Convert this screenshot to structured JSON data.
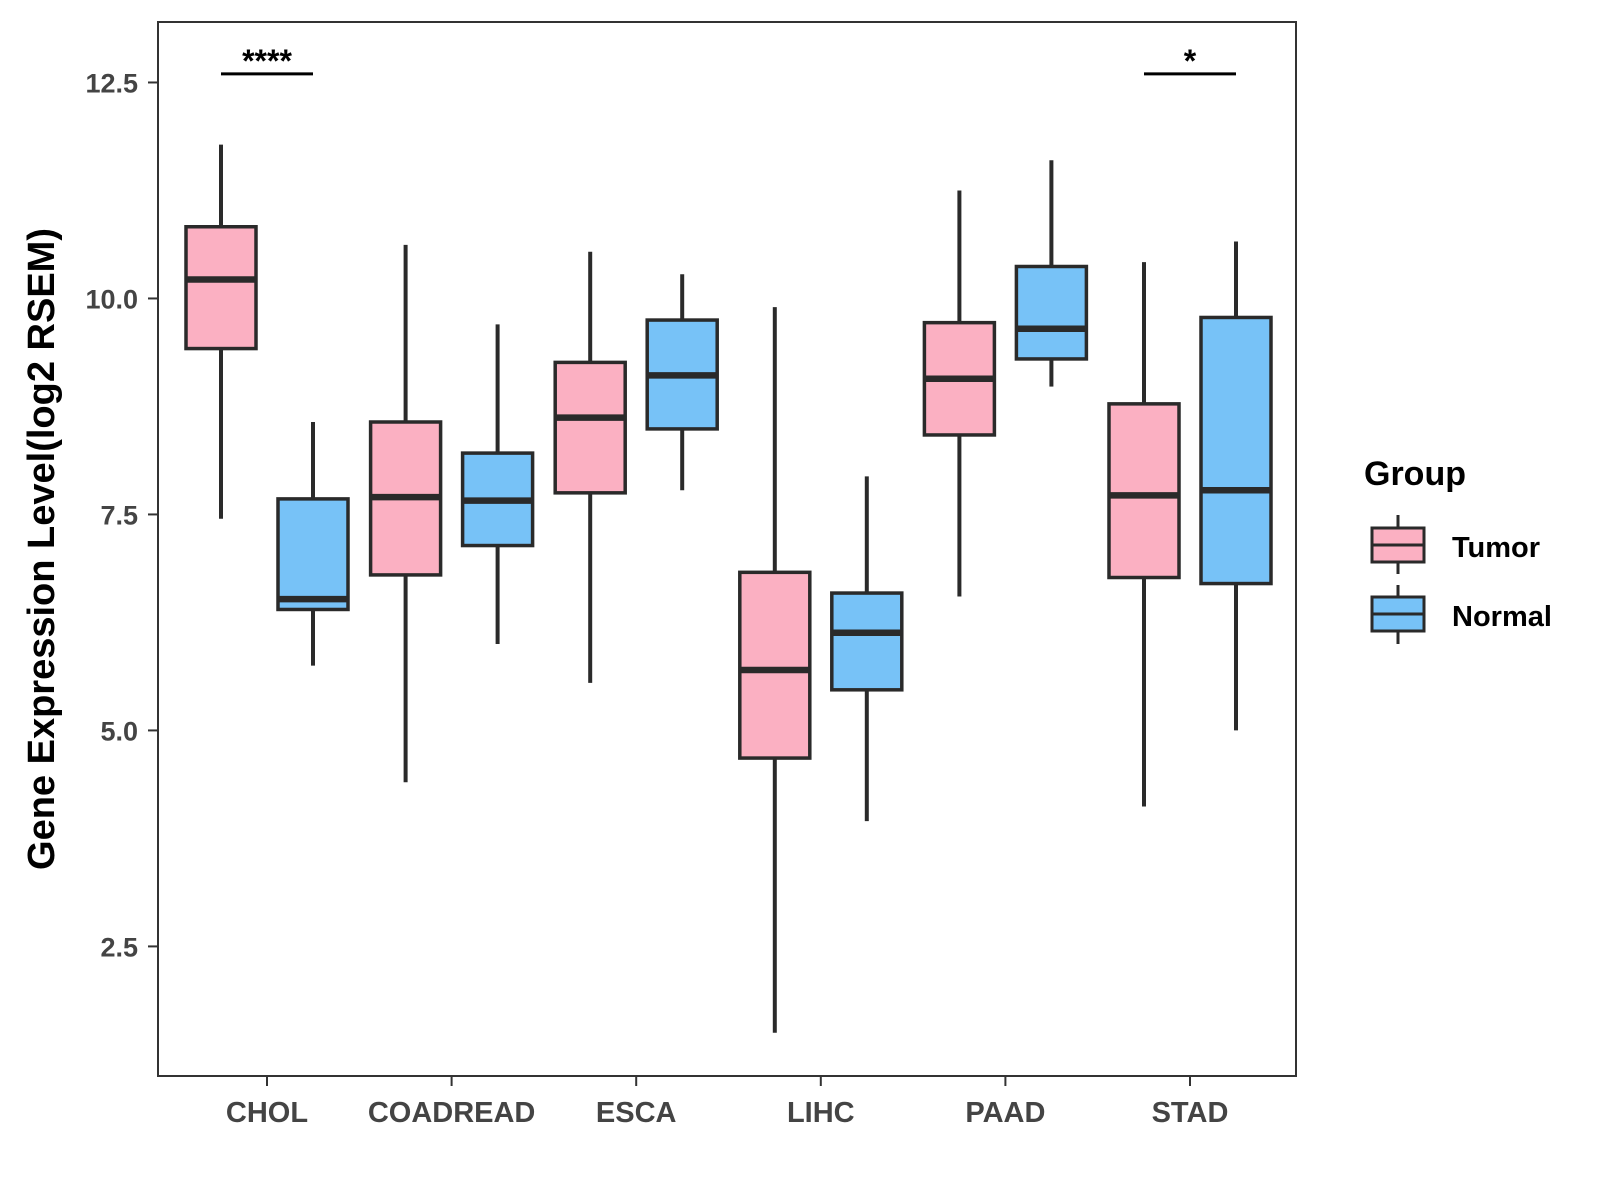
{
  "chart_data": {
    "type": "boxplot",
    "ylabel": "Gene Expression Level(log2 RSEM)",
    "xlabel": "",
    "ylim": [
      1.0,
      13.2
    ],
    "yticks": [
      2.5,
      5.0,
      7.5,
      10.0,
      12.5
    ],
    "ytick_labels": [
      "2.5",
      "5.0",
      "7.5",
      "10.0",
      "12.5"
    ],
    "categories": [
      "CHOL",
      "COADREAD",
      "ESCA",
      "LIHC",
      "PAAD",
      "STAD"
    ],
    "legend": {
      "title": "Group",
      "position": "right",
      "items": [
        "Tumor",
        "Normal"
      ]
    },
    "colors": {
      "Tumor": "#fbb0c2",
      "Normal": "#77c2f7",
      "stroke": "#2a2a2a"
    },
    "series": [
      {
        "name": "Tumor",
        "boxes": [
          {
            "min": 7.45,
            "q1": 9.42,
            "median": 10.22,
            "q3": 10.83,
            "max": 11.78
          },
          {
            "min": 4.4,
            "q1": 6.8,
            "median": 7.7,
            "q3": 8.57,
            "max": 10.62
          },
          {
            "min": 5.55,
            "q1": 7.75,
            "median": 8.62,
            "q3": 9.26,
            "max": 10.54
          },
          {
            "min": 1.5,
            "q1": 4.68,
            "median": 5.7,
            "q3": 6.83,
            "max": 9.9
          },
          {
            "min": 6.55,
            "q1": 8.42,
            "median": 9.07,
            "q3": 9.72,
            "max": 11.25
          },
          {
            "min": 4.12,
            "q1": 6.77,
            "median": 7.72,
            "q3": 8.78,
            "max": 10.42
          }
        ]
      },
      {
        "name": "Normal",
        "boxes": [
          {
            "min": 5.75,
            "q1": 6.4,
            "median": 6.52,
            "q3": 7.68,
            "max": 8.57
          },
          {
            "min": 6.0,
            "q1": 7.14,
            "median": 7.66,
            "q3": 8.21,
            "max": 9.7
          },
          {
            "min": 7.78,
            "q1": 8.49,
            "median": 9.11,
            "q3": 9.75,
            "max": 10.28
          },
          {
            "min": 3.95,
            "q1": 5.47,
            "median": 6.13,
            "q3": 6.59,
            "max": 7.94
          },
          {
            "min": 8.98,
            "q1": 9.3,
            "median": 9.65,
            "q3": 10.37,
            "max": 11.6
          },
          {
            "min": 5.0,
            "q1": 6.7,
            "median": 7.78,
            "q3": 9.78,
            "max": 10.66
          }
        ]
      }
    ],
    "significance": [
      {
        "category": "CHOL",
        "label": "****",
        "y": 12.6
      },
      {
        "category": "STAD",
        "label": "*",
        "y": 12.6
      }
    ]
  }
}
